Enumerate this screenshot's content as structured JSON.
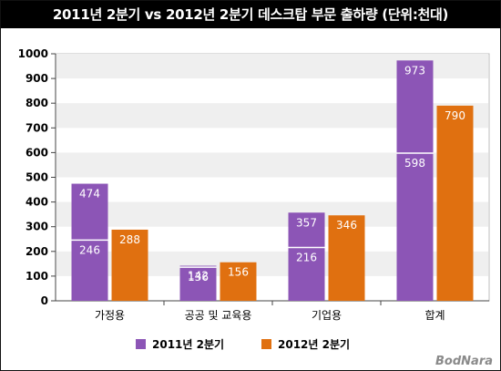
{
  "header": {
    "title": "2011년 2분기 vs 2012년 2분기 데스크탑 부문 출하량 (단위:천대)"
  },
  "watermark": "BodNara",
  "colors": {
    "series_2011": "#8c55b6",
    "series_2012": "#e07010",
    "band": "#efefef",
    "plot_border": "#bdbdbd"
  },
  "chart_data": {
    "type": "bar",
    "title": "2011년 2분기 vs 2012년 2분기 데스크탑 부문 출하량 (단위:천대)",
    "categories": [
      "가정용",
      "공공 및 교육용",
      "기업용",
      "합계"
    ],
    "series": [
      {
        "name": "2011년 2분기",
        "values": [
          474,
          142,
          357,
          973
        ],
        "inner_values": [
          246,
          136,
          216,
          598
        ]
      },
      {
        "name": "2012년 2분기",
        "values": [
          288,
          156,
          346,
          790
        ]
      }
    ],
    "ylim": [
      0,
      1000
    ],
    "yticks": [
      0,
      100,
      200,
      300,
      400,
      500,
      600,
      700,
      800,
      900,
      1000
    ],
    "grid": "alternating horizontal bands",
    "legend": "bottom-center"
  }
}
